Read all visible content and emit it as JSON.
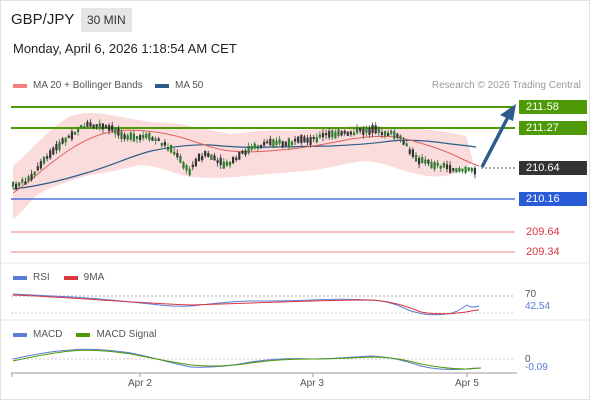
{
  "header": {
    "symbol": "GBP/JPY",
    "interval": "30 MIN",
    "datetime": "Monday, April 6, 2026 1:18:54 AM CET"
  },
  "legend": {
    "ma20_label": "MA 20 + Bollinger Bands",
    "ma20_color": "#f08080",
    "ma50_label": "MA 50",
    "ma50_color": "#2e5c8a",
    "credit": "Research © 2026 Trading Central"
  },
  "levels": {
    "r2": {
      "value": "211.58",
      "color": "#4e9a06"
    },
    "r1": {
      "value": "211.27",
      "color": "#4e9a06"
    },
    "last": {
      "value": "210.64",
      "color": "#333333"
    },
    "s1": {
      "value": "210.16",
      "color": "#2a5bd7"
    },
    "s2": {
      "value": "209.64",
      "color": "#d9363e"
    },
    "s3": {
      "value": "209.34",
      "color": "#d9363e"
    }
  },
  "rsi": {
    "label": "RSI",
    "color": "#5b7bd5",
    "ma_label": "9MA",
    "ma_color": "#d9363e",
    "level": "70",
    "value": "42.54"
  },
  "macd": {
    "label": "MACD",
    "color": "#5b7bd5",
    "signal_label": "MACD Signal",
    "signal_color": "#4e9a06",
    "zero": "0",
    "value": "-0.09"
  },
  "xaxis": {
    "ticks": [
      "Apr 2",
      "Apr 3",
      "Apr 5"
    ]
  },
  "forecast_arrow": {
    "color": "#2e5c8a"
  }
}
